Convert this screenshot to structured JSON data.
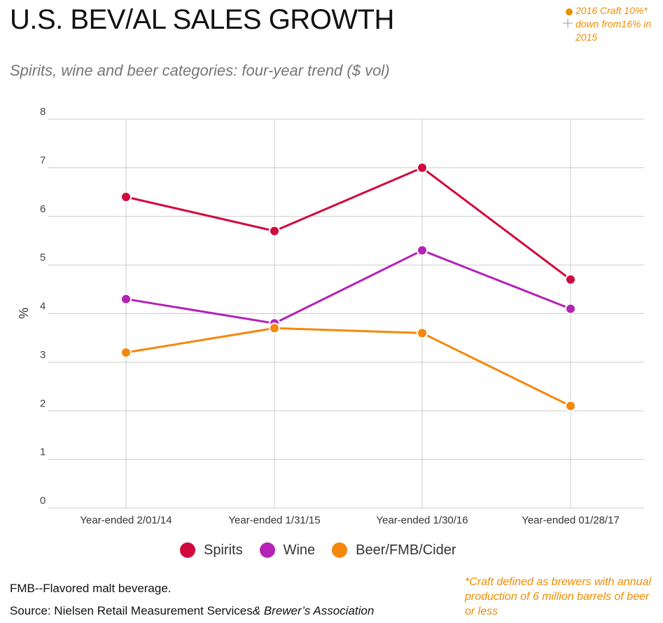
{
  "title": "U.S. BEV/AL SALES GROWTH",
  "subtitle": "Spirits, wine and beer categories: four-year trend  ($ vol)",
  "top_note": "2016 Craft 10%* down from16% in 2015",
  "footnote": "FMB--Flavored malt beverage.",
  "source_main": "Source: Nielsen Retail Measurement Services",
  "source_italic": "& Brewer’s Association",
  "craft_note": "*Craft defined as brewers with annual production of 6 million barrels of beer or less",
  "colors": {
    "spirits": "#d2093c",
    "wine": "#b522b5",
    "beer": "#f5870a"
  },
  "chart_data": {
    "type": "line",
    "title": "U.S. BEV/AL SALES GROWTH",
    "xlabel": "",
    "ylabel": "%",
    "ylim": [
      0,
      8
    ],
    "yticks": [
      "0",
      "1",
      "2",
      "3",
      "4",
      "5",
      "6",
      "7",
      "8"
    ],
    "categories": [
      "Year-ended 2/01/14",
      "Year-ended 1/31/15",
      "Year-ended 1/30/16",
      "Year-ended 01/28/17"
    ],
    "series": [
      {
        "name": "Spirits",
        "color": "#d2093c",
        "values": [
          6.4,
          5.7,
          7.0,
          4.7
        ]
      },
      {
        "name": "Wine",
        "color": "#b522b5",
        "values": [
          4.3,
          3.8,
          5.3,
          4.1
        ]
      },
      {
        "name": "Beer/FMB/Cider",
        "color": "#f5870a",
        "values": [
          3.2,
          3.7,
          3.6,
          2.1
        ]
      }
    ],
    "legend_position": "bottom"
  }
}
